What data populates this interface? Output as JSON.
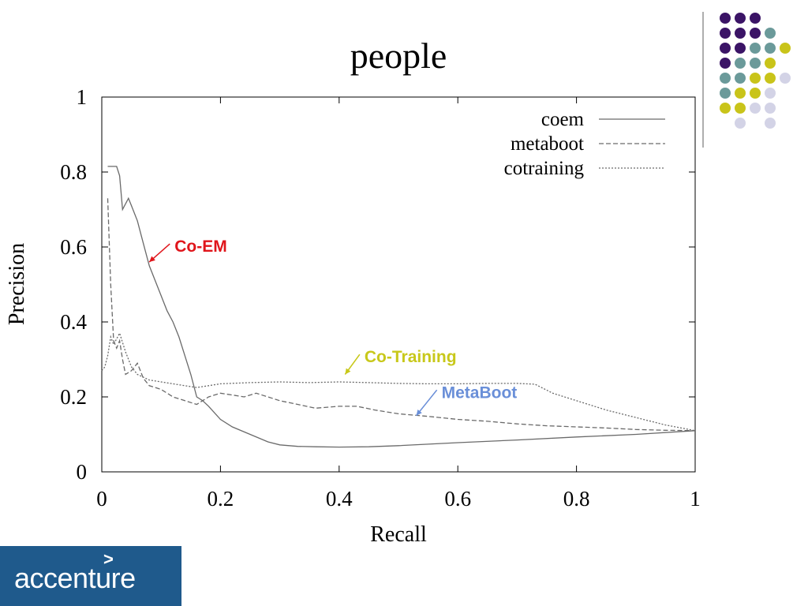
{
  "chart_data": {
    "type": "line",
    "title": "people",
    "xlabel": "Recall",
    "ylabel": "Precision",
    "xlim": [
      0,
      1
    ],
    "ylim": [
      0,
      1
    ],
    "x_ticks": [
      "0",
      "0.2",
      "0.4",
      "0.6",
      "0.8",
      "1"
    ],
    "y_ticks": [
      "0",
      "0.2",
      "0.4",
      "0.6",
      "0.8",
      "1"
    ],
    "legend_position": "top-right",
    "grid": false,
    "series": [
      {
        "name": "coem",
        "style": "solid",
        "points": [
          [
            0.01,
            0.815
          ],
          [
            0.025,
            0.815
          ],
          [
            0.03,
            0.79
          ],
          [
            0.035,
            0.7
          ],
          [
            0.045,
            0.73
          ],
          [
            0.05,
            0.71
          ],
          [
            0.06,
            0.67
          ],
          [
            0.07,
            0.61
          ],
          [
            0.08,
            0.55
          ],
          [
            0.09,
            0.51
          ],
          [
            0.1,
            0.47
          ],
          [
            0.11,
            0.43
          ],
          [
            0.12,
            0.4
          ],
          [
            0.13,
            0.36
          ],
          [
            0.14,
            0.31
          ],
          [
            0.15,
            0.26
          ],
          [
            0.16,
            0.2
          ],
          [
            0.17,
            0.19
          ],
          [
            0.18,
            0.175
          ],
          [
            0.2,
            0.14
          ],
          [
            0.22,
            0.12
          ],
          [
            0.25,
            0.1
          ],
          [
            0.28,
            0.08
          ],
          [
            0.3,
            0.072
          ],
          [
            0.33,
            0.068
          ],
          [
            0.36,
            0.067
          ],
          [
            0.4,
            0.066
          ],
          [
            0.45,
            0.067
          ],
          [
            0.5,
            0.07
          ],
          [
            0.6,
            0.078
          ],
          [
            0.7,
            0.085
          ],
          [
            0.8,
            0.093
          ],
          [
            0.9,
            0.1
          ],
          [
            1.0,
            0.11
          ]
        ]
      },
      {
        "name": "metaboot",
        "style": "dashed",
        "points": [
          [
            0.01,
            0.73
          ],
          [
            0.015,
            0.5
          ],
          [
            0.02,
            0.35
          ],
          [
            0.025,
            0.33
          ],
          [
            0.03,
            0.35
          ],
          [
            0.035,
            0.3
          ],
          [
            0.04,
            0.26
          ],
          [
            0.05,
            0.27
          ],
          [
            0.06,
            0.29
          ],
          [
            0.07,
            0.25
          ],
          [
            0.08,
            0.23
          ],
          [
            0.1,
            0.22
          ],
          [
            0.12,
            0.2
          ],
          [
            0.14,
            0.19
          ],
          [
            0.16,
            0.18
          ],
          [
            0.18,
            0.2
          ],
          [
            0.2,
            0.21
          ],
          [
            0.22,
            0.205
          ],
          [
            0.24,
            0.2
          ],
          [
            0.26,
            0.21
          ],
          [
            0.28,
            0.2
          ],
          [
            0.3,
            0.19
          ],
          [
            0.33,
            0.18
          ],
          [
            0.36,
            0.17
          ],
          [
            0.4,
            0.175
          ],
          [
            0.43,
            0.175
          ],
          [
            0.46,
            0.165
          ],
          [
            0.5,
            0.155
          ],
          [
            0.55,
            0.148
          ],
          [
            0.6,
            0.14
          ],
          [
            0.65,
            0.135
          ],
          [
            0.7,
            0.128
          ],
          [
            0.75,
            0.123
          ],
          [
            0.8,
            0.12
          ],
          [
            0.85,
            0.117
          ],
          [
            0.9,
            0.113
          ],
          [
            0.95,
            0.111
          ],
          [
            1.0,
            0.11
          ]
        ]
      },
      {
        "name": "cotraining",
        "style": "dotted",
        "points": [
          [
            0.0,
            0.27
          ],
          [
            0.005,
            0.28
          ],
          [
            0.01,
            0.31
          ],
          [
            0.015,
            0.36
          ],
          [
            0.02,
            0.34
          ],
          [
            0.03,
            0.37
          ],
          [
            0.04,
            0.32
          ],
          [
            0.05,
            0.28
          ],
          [
            0.06,
            0.26
          ],
          [
            0.08,
            0.245
          ],
          [
            0.1,
            0.24
          ],
          [
            0.12,
            0.235
          ],
          [
            0.14,
            0.23
          ],
          [
            0.16,
            0.225
          ],
          [
            0.18,
            0.23
          ],
          [
            0.2,
            0.235
          ],
          [
            0.25,
            0.238
          ],
          [
            0.3,
            0.24
          ],
          [
            0.35,
            0.238
          ],
          [
            0.4,
            0.24
          ],
          [
            0.45,
            0.238
          ],
          [
            0.5,
            0.236
          ],
          [
            0.55,
            0.235
          ],
          [
            0.6,
            0.235
          ],
          [
            0.65,
            0.236
          ],
          [
            0.7,
            0.236
          ],
          [
            0.73,
            0.234
          ],
          [
            0.76,
            0.21
          ],
          [
            0.8,
            0.19
          ],
          [
            0.85,
            0.165
          ],
          [
            0.9,
            0.145
          ],
          [
            0.95,
            0.125
          ],
          [
            1.0,
            0.11
          ]
        ]
      }
    ],
    "annotations": [
      {
        "text": "Co-EM",
        "color": "#e0151b",
        "at": [
          0.08,
          0.56
        ],
        "label_at": [
          0.12,
          0.6
        ]
      },
      {
        "text": "Co-Training",
        "color": "#c8c81a",
        "at": [
          0.41,
          0.26
        ],
        "label_at": [
          0.44,
          0.305
        ]
      },
      {
        "text": "MetaBoot",
        "color": "#6a8fd8",
        "at": [
          0.53,
          0.15
        ],
        "label_at": [
          0.57,
          0.21
        ]
      }
    ]
  },
  "decoration": {
    "dot_colors": [
      "#3b1466",
      "#6b9a9a",
      "#c9c41a",
      "#d3d3e6"
    ]
  },
  "logo": {
    "text": "accenture",
    "mark": ">"
  }
}
